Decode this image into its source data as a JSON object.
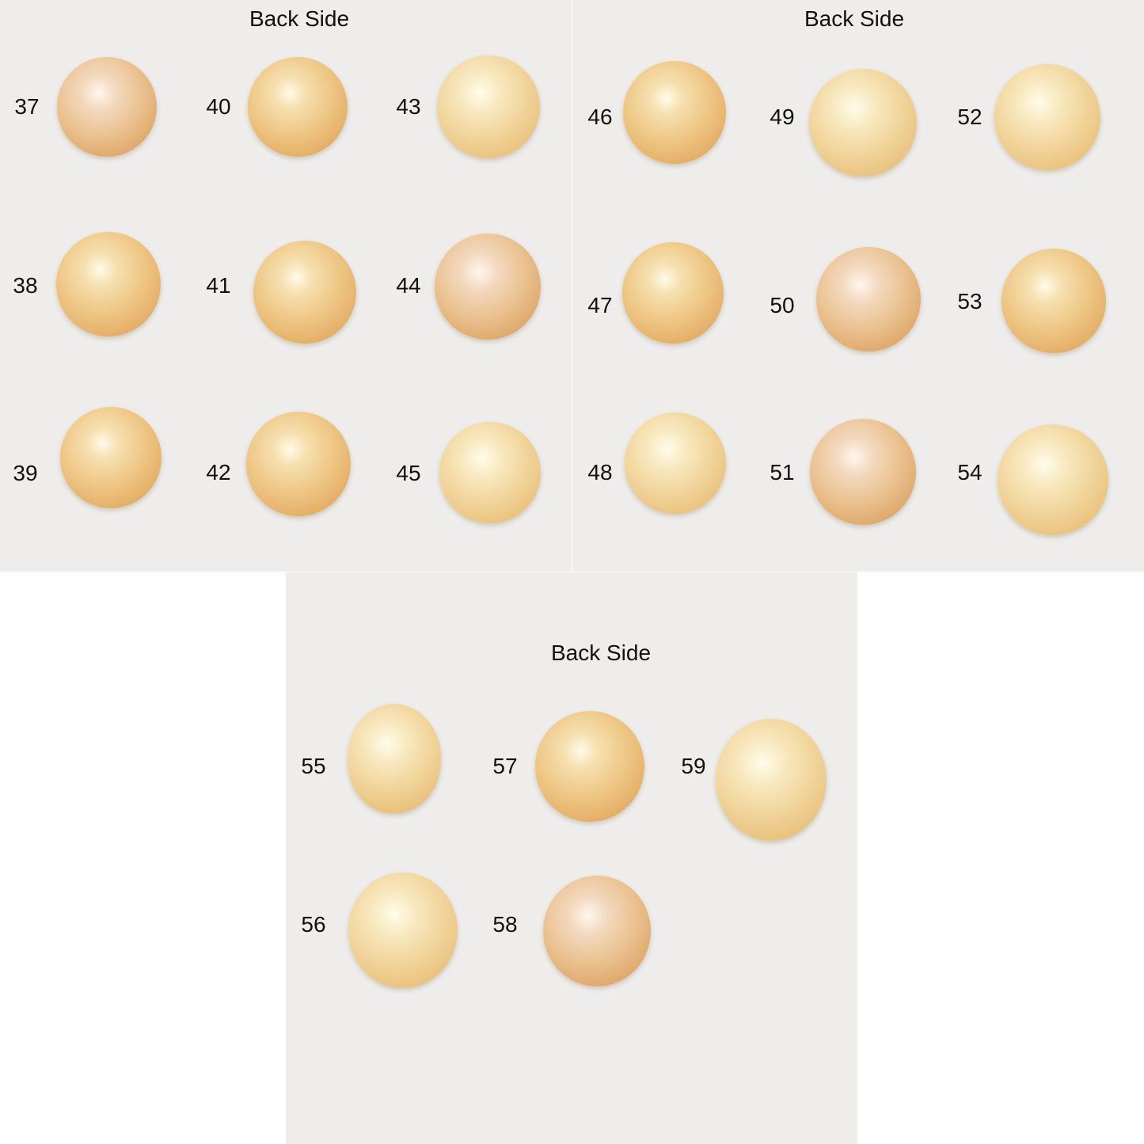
{
  "panels": [
    {
      "title": "Back Side",
      "pearls": [
        "37",
        "40",
        "43",
        "38",
        "41",
        "44",
        "39",
        "42",
        "45"
      ]
    },
    {
      "title": "Back Side",
      "pearls": [
        "46",
        "49",
        "52",
        "47",
        "50",
        "53",
        "48",
        "51",
        "54"
      ]
    },
    {
      "title": "Back Side",
      "pearls": [
        "55",
        "57",
        "59",
        "56",
        "58"
      ]
    }
  ],
  "colors": {
    "background": "#eeedeb",
    "pearl": "#e8b66e",
    "text": "#111111"
  }
}
